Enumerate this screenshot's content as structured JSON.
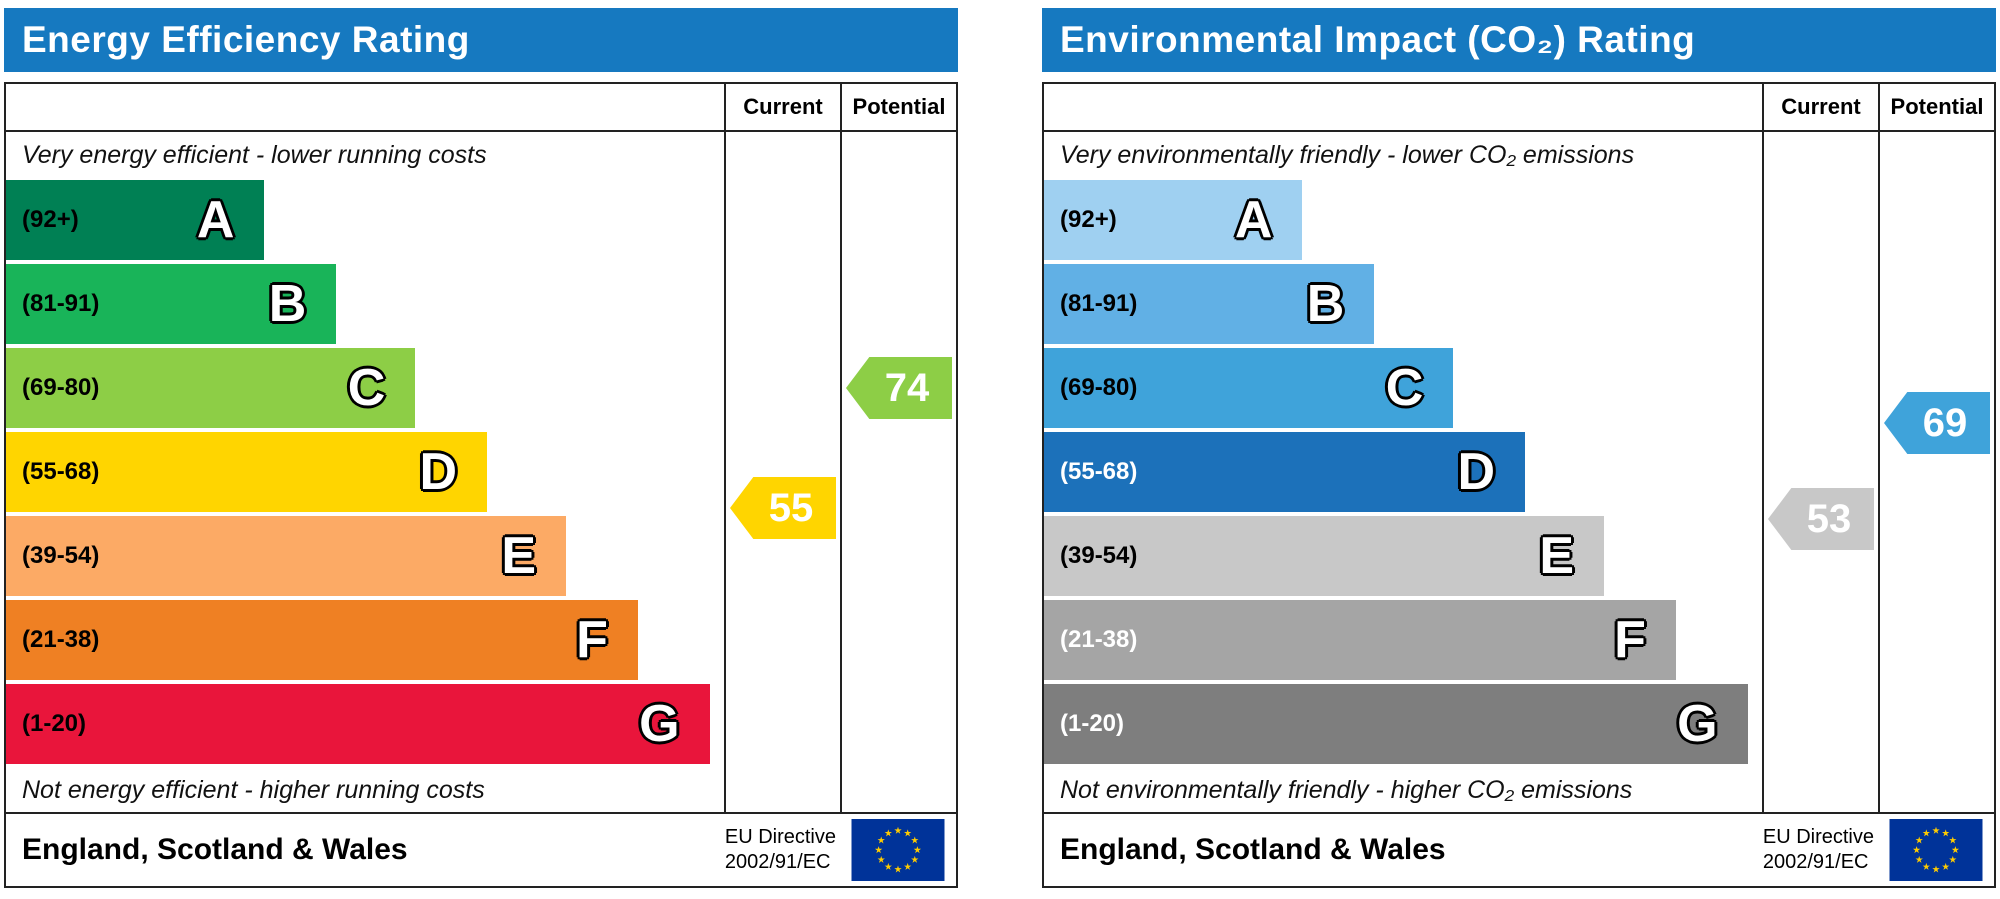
{
  "page": {
    "background": "#ffffff"
  },
  "eu_flag": {
    "background": "#003399",
    "star_color": "#ffcc00"
  },
  "chart_data": [
    {
      "type": "bar",
      "id": "energy-efficiency",
      "title": "Energy Efficiency Rating",
      "header_color": "#1679c0",
      "columns": {
        "current": "Current",
        "potential": "Potential"
      },
      "caption_top": "Very energy efficient - lower running costs",
      "caption_bottom": "Not energy efficient - higher running costs",
      "bands": [
        {
          "letter": "A",
          "range_label": "(92+)",
          "min": 92,
          "max": 100,
          "color": "#008054",
          "width_pct": 36,
          "label_color": "#000000"
        },
        {
          "letter": "B",
          "range_label": "(81-91)",
          "min": 81,
          "max": 91,
          "color": "#19b459",
          "width_pct": 46,
          "label_color": "#000000"
        },
        {
          "letter": "C",
          "range_label": "(69-80)",
          "min": 69,
          "max": 80,
          "color": "#8dce46",
          "width_pct": 57,
          "label_color": "#000000"
        },
        {
          "letter": "D",
          "range_label": "(55-68)",
          "min": 55,
          "max": 68,
          "color": "#ffd500",
          "width_pct": 67,
          "label_color": "#000000"
        },
        {
          "letter": "E",
          "range_label": "(39-54)",
          "min": 39,
          "max": 54,
          "color": "#fcaa65",
          "width_pct": 78,
          "label_color": "#000000"
        },
        {
          "letter": "F",
          "range_label": "(21-38)",
          "min": 21,
          "max": 38,
          "color": "#ef8023",
          "width_pct": 88,
          "label_color": "#000000"
        },
        {
          "letter": "G",
          "range_label": "(1-20)",
          "min": 1,
          "max": 20,
          "color": "#e9153b",
          "width_pct": 98,
          "label_color": "#000000"
        }
      ],
      "current": {
        "value": 55,
        "color": "#ffd500",
        "text_color": "#ffffff"
      },
      "potential": {
        "value": 74,
        "color": "#8dce46",
        "text_color": "#ffffff"
      },
      "footer": {
        "region": "England, Scotland & Wales",
        "directive_line1": "EU Directive",
        "directive_line2": "2002/91/EC"
      }
    },
    {
      "type": "bar",
      "id": "environmental-impact",
      "title": "Environmental Impact (CO₂) Rating",
      "header_color": "#1679c0",
      "columns": {
        "current": "Current",
        "potential": "Potential"
      },
      "caption_top": "Very environmentally friendly - lower CO₂ emissions",
      "caption_bottom": "Not environmentally friendly - higher CO₂ emissions",
      "bands": [
        {
          "letter": "A",
          "range_label": "(92+)",
          "min": 92,
          "max": 100,
          "color": "#9fd0f1",
          "width_pct": 36,
          "label_color": "#000000"
        },
        {
          "letter": "B",
          "range_label": "(81-91)",
          "min": 81,
          "max": 91,
          "color": "#61b0e5",
          "width_pct": 46,
          "label_color": "#000000"
        },
        {
          "letter": "C",
          "range_label": "(69-80)",
          "min": 69,
          "max": 80,
          "color": "#3fa3da",
          "width_pct": 57,
          "label_color": "#000000"
        },
        {
          "letter": "D",
          "range_label": "(55-68)",
          "min": 55,
          "max": 68,
          "color": "#1c71ba",
          "width_pct": 67,
          "label_color": "#ffffff"
        },
        {
          "letter": "E",
          "range_label": "(39-54)",
          "min": 39,
          "max": 54,
          "color": "#c8c8c8",
          "width_pct": 78,
          "label_color": "#000000"
        },
        {
          "letter": "F",
          "range_label": "(21-38)",
          "min": 21,
          "max": 38,
          "color": "#a5a5a5",
          "width_pct": 88,
          "label_color": "#ffffff"
        },
        {
          "letter": "G",
          "range_label": "(1-20)",
          "min": 1,
          "max": 20,
          "color": "#7e7e7e",
          "width_pct": 98,
          "label_color": "#ffffff"
        }
      ],
      "current": {
        "value": 53,
        "color": "#c8c8c8",
        "text_color": "#ffffff"
      },
      "potential": {
        "value": 69,
        "color": "#3fa3da",
        "text_color": "#ffffff"
      },
      "footer": {
        "region": "England, Scotland & Wales",
        "directive_line1": "EU Directive",
        "directive_line2": "2002/91/EC"
      }
    }
  ]
}
